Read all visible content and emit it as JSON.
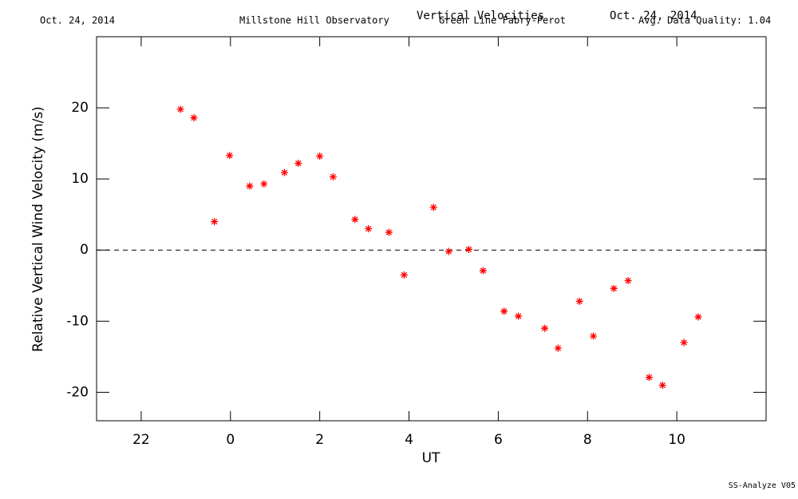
{
  "chart_data": {
    "type": "scatter",
    "date_left": "Oct. 24, 2014",
    "observatory": "Millstone Hill Observatory",
    "title": "Vertical Velocities",
    "subtitle": "Green Line Fabry-Perot",
    "date_right": "Oct. 24, 2014",
    "quality": "Avg. Data Quality: 1.04",
    "footer": "SS-Analyze V05",
    "xlabel": "UT",
    "ylabel": "Relative Vertical Wind Velocity (m/s)",
    "xlim": [
      -3,
      12
    ],
    "ylim": [
      -24,
      30
    ],
    "xticks": [
      {
        "value": -2,
        "label": "22"
      },
      0,
      2,
      4,
      6,
      8,
      10
    ],
    "yticks": [
      -20,
      -10,
      0,
      10,
      20
    ],
    "zero_line": true,
    "color": "#ff0000",
    "marker": "asterisk",
    "x": [
      -1.12,
      -0.82,
      -0.36,
      -0.02,
      0.43,
      0.75,
      1.21,
      1.52,
      2.0,
      2.3,
      2.79,
      3.09,
      3.55,
      3.89,
      4.55,
      4.89,
      5.34,
      5.66,
      6.13,
      6.45,
      7.04,
      7.34,
      7.82,
      8.13,
      8.59,
      8.91,
      9.38,
      9.68,
      10.16,
      10.48
    ],
    "values": [
      19.8,
      18.6,
      4.0,
      13.3,
      9.0,
      9.3,
      10.9,
      12.2,
      13.2,
      10.3,
      4.3,
      3.0,
      2.5,
      -3.5,
      6.0,
      -0.2,
      0.1,
      -2.9,
      -8.6,
      -9.3,
      -11.0,
      -13.8,
      -7.2,
      -12.1,
      -5.4,
      -4.3,
      -17.9,
      -19.0,
      -13.0,
      -9.4
    ]
  }
}
